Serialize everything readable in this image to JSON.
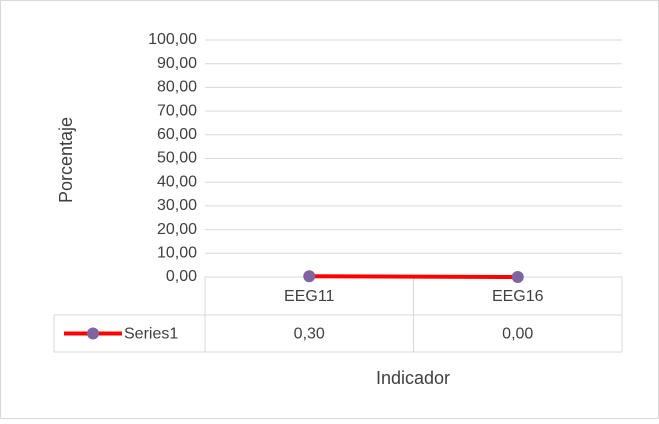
{
  "chart_data": {
    "type": "line",
    "y_label": "Porcentaje",
    "x_label": "Indicador",
    "categories": [
      "EEG11",
      "EEG16"
    ],
    "series": [
      {
        "name": "Series1",
        "color": "#ff0000",
        "marker_color": "#8064a2",
        "values": [
          0.3,
          0
        ],
        "value_labels": [
          "0,30",
          "0,00"
        ]
      }
    ],
    "ylim": [
      0,
      100
    ],
    "yticks": [
      {
        "value": 0,
        "label": "0,00"
      },
      {
        "value": 10,
        "label": "10,00"
      },
      {
        "value": 20,
        "label": "20,00"
      },
      {
        "value": 30,
        "label": "30,00"
      },
      {
        "value": 40,
        "label": "40,00"
      },
      {
        "value": 50,
        "label": "50,00"
      },
      {
        "value": 60,
        "label": "60,00"
      },
      {
        "value": 70,
        "label": "70,00"
      },
      {
        "value": 80,
        "label": "80,00"
      },
      {
        "value": 90,
        "label": "90,00"
      },
      {
        "value": 100,
        "label": "100,00"
      }
    ],
    "grid": true,
    "data_table": true
  }
}
